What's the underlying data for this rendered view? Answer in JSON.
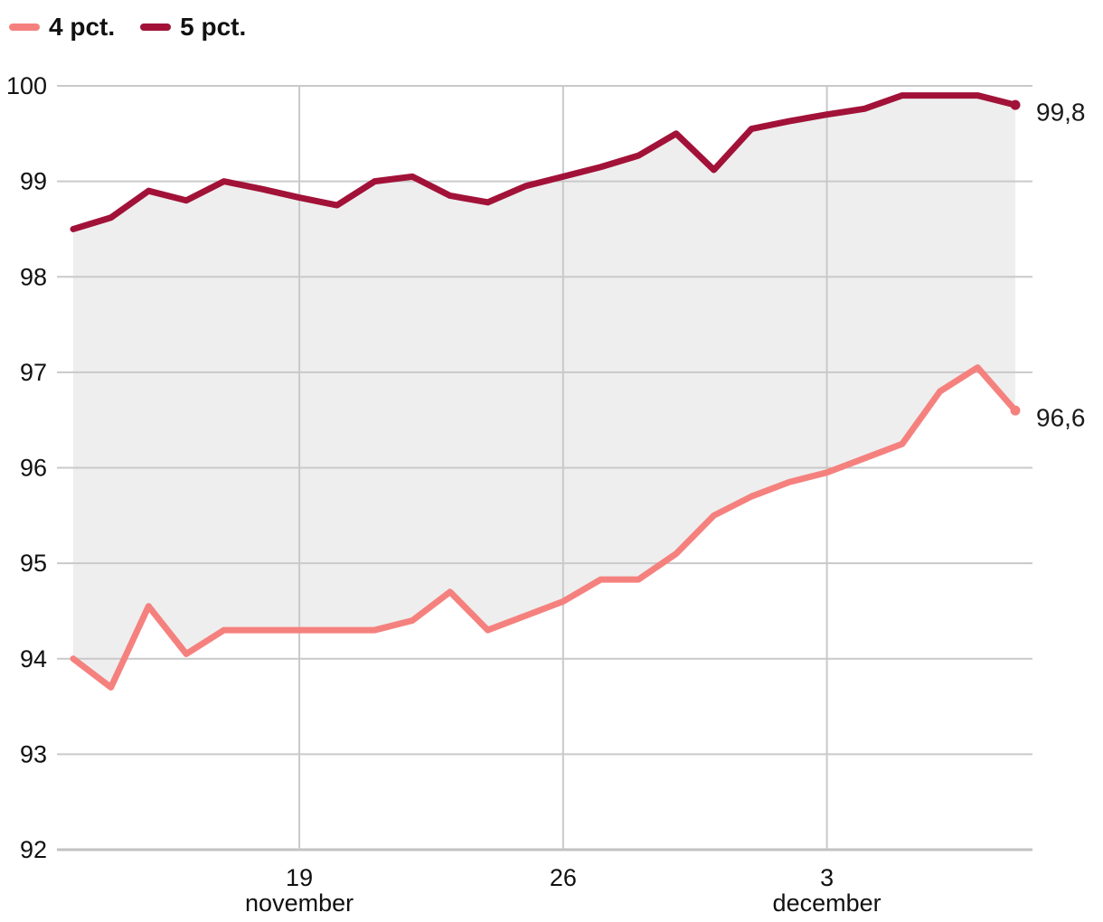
{
  "legend": {
    "items": [
      {
        "label": "4 pct."
      },
      {
        "label": "5 pct."
      }
    ]
  },
  "chart_data": {
    "type": "line",
    "title": "",
    "xlabel": "",
    "ylabel": "",
    "n_points": 26,
    "ylim": [
      92,
      100
    ],
    "y_ticks": [
      100,
      99,
      98,
      97,
      96,
      95,
      94,
      93,
      92
    ],
    "x_ticks": [
      {
        "label_day": "19",
        "label_month": "november",
        "point_index": 6
      },
      {
        "label_day": "26",
        "label_month": "",
        "point_index": 13
      },
      {
        "label_day": "3",
        "label_month": "december",
        "point_index": 20
      }
    ],
    "series": [
      {
        "name": "4 pct.",
        "color": "#F5817E",
        "end_label": "96,6",
        "values": [
          94.0,
          93.7,
          94.55,
          94.05,
          94.3,
          94.3,
          94.3,
          94.3,
          94.3,
          94.4,
          94.7,
          94.3,
          94.45,
          94.6,
          94.83,
          94.83,
          95.1,
          95.5,
          95.7,
          95.85,
          95.95,
          96.1,
          96.25,
          96.8,
          97.05,
          96.6
        ]
      },
      {
        "name": "5 pct.",
        "color": "#A21238",
        "end_label": "99,8",
        "values": [
          98.5,
          98.62,
          98.9,
          98.8,
          99.0,
          98.92,
          98.83,
          98.75,
          99.0,
          99.05,
          98.85,
          98.78,
          98.95,
          99.05,
          99.15,
          99.27,
          99.5,
          99.12,
          99.55,
          99.63,
          99.7,
          99.76,
          99.9,
          99.9,
          99.9,
          99.8
        ]
      }
    ],
    "band_fill": "#EEEEEE",
    "grid_color": "#C9C9C9",
    "axis_color": "#C2C2C2",
    "text_color": "#111111",
    "grid": true,
    "legend_position": "top-left",
    "decimal_separator": ","
  }
}
